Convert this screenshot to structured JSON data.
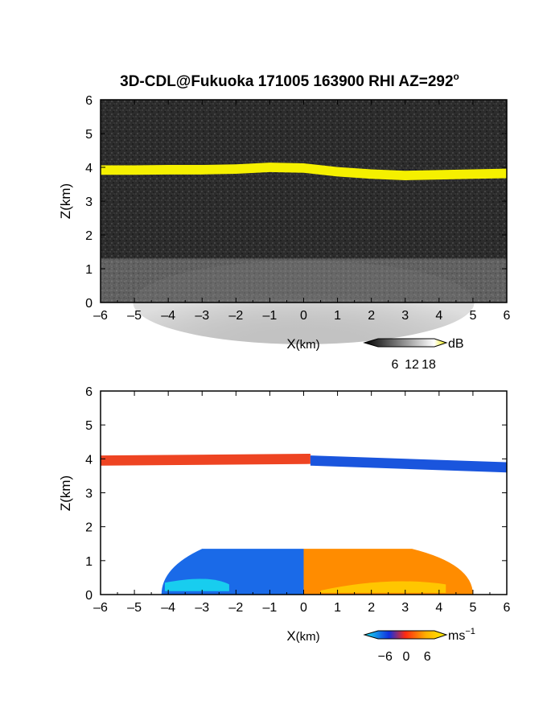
{
  "chart_data": [
    {
      "type": "heatmap",
      "title": "3D-CDL@Fukuoka 171005 163900 RHI AZ=292",
      "title_degree": "o",
      "xlabel": "X",
      "xlabel_unit": "(km)",
      "ylabel": "Z(km)",
      "xlim": [
        -6,
        6
      ],
      "ylim": [
        0,
        6
      ],
      "xticks": [
        "-6",
        "-5",
        "-4",
        "-3",
        "-2",
        "-1",
        "0",
        "1",
        "2",
        "3",
        "4",
        "5",
        "6"
      ],
      "yticks": [
        "0",
        "1",
        "2",
        "3",
        "4",
        "5",
        "6"
      ],
      "background_color": "#2a2a2a",
      "layers": [
        {
          "kind": "cloud-layer",
          "x": [
            -6,
            -5,
            -4,
            -3,
            -2,
            -1,
            0,
            1,
            2,
            3,
            4,
            5,
            6
          ],
          "z_center": [
            3.92,
            3.92,
            3.93,
            3.93,
            3.95,
            4.0,
            3.98,
            3.87,
            3.8,
            3.76,
            3.78,
            3.8,
            3.82
          ],
          "thickness": 0.28,
          "value_db": 18,
          "color": "#f5f000"
        },
        {
          "kind": "boundary-layer",
          "x_range": [
            -6,
            6
          ],
          "z_range": [
            0,
            1.3
          ],
          "value_db": 10,
          "color": "#8a8a8a"
        }
      ],
      "colorbar": {
        "ticks": [
          "6",
          "12",
          "18"
        ],
        "unit": "dB",
        "range": [
          0,
          20
        ],
        "colors": [
          "#000000",
          "#ffffff",
          "#f5f000"
        ]
      }
    },
    {
      "type": "heatmap",
      "xlabel": "X",
      "xlabel_unit": "(km)",
      "ylabel": "Z(km)",
      "xlim": [
        -6,
        6
      ],
      "ylim": [
        0,
        6
      ],
      "xticks": [
        "-6",
        "-5",
        "-4",
        "-3",
        "-2",
        "-1",
        "0",
        "1",
        "2",
        "3",
        "4",
        "5",
        "6"
      ],
      "yticks": [
        "0",
        "1",
        "2",
        "3",
        "4",
        "5",
        "6"
      ],
      "background_color": "#ffffff",
      "layers": [
        {
          "kind": "cloud-layer-positive",
          "x_range": [
            -6,
            0.2
          ],
          "z_center": [
            3.95,
            4.0
          ],
          "thickness": 0.3,
          "value_ms": 2,
          "color": "#ee4422"
        },
        {
          "kind": "cloud-layer-negative",
          "x_range": [
            0.2,
            6
          ],
          "z_center": [
            3.95,
            3.75
          ],
          "thickness": 0.3,
          "value_ms": -4,
          "color": "#1a55dd"
        },
        {
          "kind": "boundary-layer-negative",
          "x_range": [
            -4.2,
            0
          ],
          "z_range": [
            0,
            1.35
          ],
          "value_ms": -4,
          "color": "#1a6ae8"
        },
        {
          "kind": "boundary-layer-positive",
          "x_range": [
            0,
            5
          ],
          "z_range": [
            0,
            1.35
          ],
          "value_ms": 4,
          "color": "#ff8c00"
        }
      ],
      "colorbar": {
        "ticks": [
          "−6",
          "0",
          "6"
        ],
        "unit": "ms",
        "unit_exp": "−1",
        "range": [
          -8,
          8
        ],
        "colors": [
          "#18e6f0",
          "#1030e0",
          "#ff2a10",
          "#ffd000",
          "#fff200"
        ]
      }
    }
  ]
}
